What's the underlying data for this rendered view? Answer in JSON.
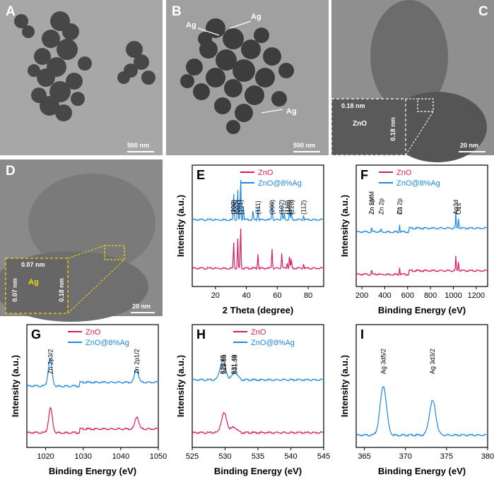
{
  "panels": {
    "A": {
      "label": "A",
      "scale": "500 nm"
    },
    "B": {
      "label": "B",
      "scale": "500 nm",
      "annotations": [
        "Ag",
        "Ag",
        "Ag"
      ]
    },
    "C": {
      "label": "C",
      "scale": "20 nm",
      "insets": [
        "0.18 nm",
        "ZnO",
        "0.18 nm"
      ]
    },
    "D": {
      "label": "D",
      "scale": "20 nm",
      "insets": [
        "0.07 nm",
        "Ag",
        "0.07 nm",
        "0.18 nm"
      ]
    }
  },
  "colors": {
    "zno": "#d81b60",
    "zno_ag": "#1e88e5",
    "baseline": "#a67c00",
    "fit": "#1b5e20",
    "fit2": "#6a1b9a"
  },
  "chart_data": [
    {
      "id": "E",
      "label": "E",
      "type": "line",
      "xlabel": "2 Theta (degree)",
      "ylabel": "Intensity (a.u.)",
      "xlim": [
        5,
        90
      ],
      "xticks": [
        20,
        40,
        60,
        80
      ],
      "series": [
        {
          "name": "ZnO",
          "peaks": [
            [
              31.8,
              0.55
            ],
            [
              34.4,
              0.6
            ],
            [
              36.3,
              0.85
            ],
            [
              47.5,
              0.3
            ],
            [
              56.6,
              0.42
            ],
            [
              62.9,
              0.32
            ],
            [
              66.4,
              0.12
            ],
            [
              67.9,
              0.28
            ],
            [
              69.1,
              0.18
            ],
            [
              77.0,
              0.1
            ]
          ]
        },
        {
          "name": "ZnO@8%Ag",
          "peaks": [
            [
              31.8,
              0.55
            ],
            [
              34.4,
              0.6
            ],
            [
              36.3,
              0.85
            ],
            [
              38.1,
              0.3
            ],
            [
              44.3,
              0.18
            ],
            [
              47.5,
              0.28
            ],
            [
              56.6,
              0.4
            ],
            [
              62.9,
              0.3
            ],
            [
              64.5,
              0.12
            ],
            [
              67.9,
              0.26
            ],
            [
              69.1,
              0.16
            ],
            [
              77.0,
              0.1
            ]
          ]
        }
      ],
      "annotations": [
        "(100)",
        "(002)",
        "(101)",
        "(111)",
        "(200)",
        "(102)",
        "(110)",
        "(103)",
        "(220)",
        "(112)",
        "(202)"
      ]
    },
    {
      "id": "F",
      "label": "F",
      "type": "line",
      "xlabel": "Binding Energy (eV)",
      "ylabel": "Intensity (a.u.)",
      "xlim": [
        150,
        1300
      ],
      "xticks": [
        200,
        400,
        600,
        800,
        1000,
        1200
      ],
      "series": [
        {
          "name": "ZnO",
          "peaks": [
            [
              285,
              0.08
            ],
            [
              530,
              0.15
            ],
            [
              1022,
              0.3
            ],
            [
              1045,
              0.22
            ]
          ]
        },
        {
          "name": "ZnO@8%Ag",
          "peaks": [
            [
              285,
              0.08
            ],
            [
              368,
              0.06
            ],
            [
              530,
              0.16
            ],
            [
              1022,
              0.32
            ],
            [
              1045,
              0.24
            ]
          ]
        }
      ],
      "annotations": [
        "Zn 3p",
        "C1",
        "Ag3d",
        "O1s",
        "Zn LMM",
        "Zn 2p",
        "Zn 2p"
      ]
    },
    {
      "id": "G",
      "label": "G",
      "type": "line",
      "xlabel": "Binding Energy (eV)",
      "ylabel": "Intensity (a.u.)",
      "xlim": [
        1015,
        1050
      ],
      "xticks": [
        1020,
        1030,
        1040,
        1050
      ],
      "series": [
        {
          "name": "ZnO",
          "peaks": [
            [
              1021.3,
              0.5
            ],
            [
              1044.3,
              0.25
            ]
          ]
        },
        {
          "name": "ZnO@8%Ag",
          "peaks": [
            [
              1021.2,
              0.55
            ],
            [
              1044.2,
              0.27
            ]
          ]
        }
      ],
      "annotations": [
        "Zn 2p3/2",
        "Zn 2p1/2"
      ]
    },
    {
      "id": "H",
      "label": "H",
      "type": "line",
      "xlabel": "Binding Energy (eV)",
      "ylabel": "Intensity (a.u.)",
      "xlim": [
        525,
        545
      ],
      "xticks": [
        525,
        530,
        535,
        540,
        545
      ],
      "series": [
        {
          "name": "ZnO",
          "peaks": [
            [
              529.85,
              0.4
            ],
            [
              531.35,
              0.12
            ]
          ]
        },
        {
          "name": "ZnO@8%Ag",
          "peaks": [
            [
              529.66,
              0.4
            ],
            [
              531.49,
              0.15
            ]
          ]
        }
      ],
      "annotations": [
        "529.66",
        "531.49",
        "529.85",
        "531.35"
      ]
    },
    {
      "id": "I",
      "label": "I",
      "type": "line",
      "xlabel": "Binding Energy (eV)",
      "ylabel": "Intensity (a.u.)",
      "xlim": [
        364,
        380
      ],
      "xticks": [
        365,
        370,
        375,
        380
      ],
      "series": [
        {
          "name": "ZnO@8%Ag",
          "peaks": [
            [
              367.3,
              1.0
            ],
            [
              373.3,
              0.7
            ]
          ]
        }
      ],
      "annotations": [
        "Ag 3d5/2",
        "Ag 3d3/2"
      ]
    }
  ]
}
